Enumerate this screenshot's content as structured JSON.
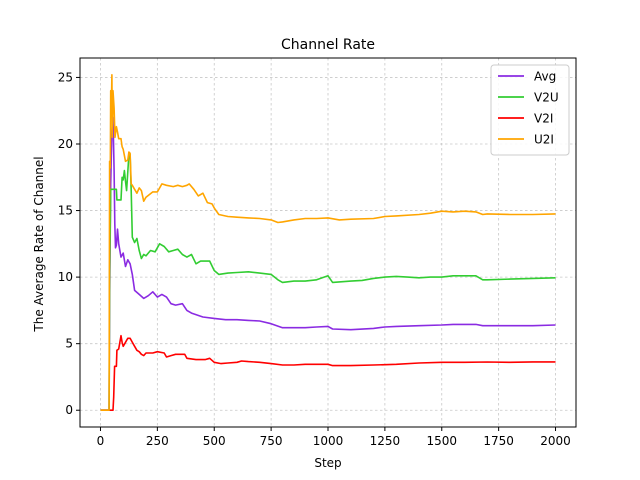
{
  "chart_data": {
    "type": "line",
    "title": "Channel Rate",
    "xlabel": "Step",
    "ylabel": "The Average Rate of Channel",
    "xlim": [
      -90,
      2090
    ],
    "ylim": [
      -1.26,
      26.46
    ],
    "xticks": [
      0,
      250,
      500,
      750,
      1000,
      1250,
      1500,
      1750,
      2000
    ],
    "yticks": [
      0,
      5,
      10,
      15,
      20,
      25
    ],
    "grid": true,
    "legend_position": "top-right",
    "series": [
      {
        "name": "Avg",
        "color": "#8a2be2",
        "points": [
          [
            0,
            0
          ],
          [
            38,
            0
          ],
          [
            40,
            8
          ],
          [
            45,
            17
          ],
          [
            50,
            21
          ],
          [
            55,
            22
          ],
          [
            60,
            18
          ],
          [
            63,
            14
          ],
          [
            66,
            12.2
          ],
          [
            70,
            12.4
          ],
          [
            75,
            13.6
          ],
          [
            80,
            12.5
          ],
          [
            90,
            11.5
          ],
          [
            100,
            11.8
          ],
          [
            110,
            10.8
          ],
          [
            120,
            11.3
          ],
          [
            130,
            11
          ],
          [
            140,
            10.2
          ],
          [
            150,
            9
          ],
          [
            170,
            8.7
          ],
          [
            190,
            8.4
          ],
          [
            210,
            8.6
          ],
          [
            230,
            8.9
          ],
          [
            250,
            8.5
          ],
          [
            270,
            8.7
          ],
          [
            290,
            8.5
          ],
          [
            310,
            8
          ],
          [
            330,
            7.9
          ],
          [
            360,
            8
          ],
          [
            380,
            7.5
          ],
          [
            400,
            7.3
          ],
          [
            450,
            7
          ],
          [
            500,
            6.9
          ],
          [
            550,
            6.8
          ],
          [
            600,
            6.8
          ],
          [
            650,
            6.75
          ],
          [
            700,
            6.7
          ],
          [
            750,
            6.5
          ],
          [
            800,
            6.2
          ],
          [
            850,
            6.2
          ],
          [
            900,
            6.2
          ],
          [
            950,
            6.25
          ],
          [
            1000,
            6.3
          ],
          [
            1020,
            6.1
          ],
          [
            1100,
            6.05
          ],
          [
            1200,
            6.15
          ],
          [
            1250,
            6.25
          ],
          [
            1300,
            6.3
          ],
          [
            1400,
            6.35
          ],
          [
            1500,
            6.4
          ],
          [
            1550,
            6.45
          ],
          [
            1600,
            6.45
          ],
          [
            1650,
            6.45
          ],
          [
            1680,
            6.35
          ],
          [
            1750,
            6.35
          ],
          [
            1800,
            6.35
          ],
          [
            1900,
            6.35
          ],
          [
            2000,
            6.4
          ]
        ]
      },
      {
        "name": "V2U",
        "color": "#32cd32",
        "points": [
          [
            0,
            0
          ],
          [
            38,
            0
          ],
          [
            40,
            10
          ],
          [
            45,
            16.6
          ],
          [
            70,
            16.6
          ],
          [
            72,
            15.8
          ],
          [
            90,
            15.8
          ],
          [
            95,
            17.5
          ],
          [
            100,
            17.3
          ],
          [
            105,
            18
          ],
          [
            110,
            17.2
          ],
          [
            115,
            16.5
          ],
          [
            125,
            19.2
          ],
          [
            130,
            19.2
          ],
          [
            135,
            16.5
          ],
          [
            140,
            13
          ],
          [
            150,
            12.6
          ],
          [
            160,
            12.9
          ],
          [
            170,
            12
          ],
          [
            180,
            11.4
          ],
          [
            190,
            11.7
          ],
          [
            200,
            11.6
          ],
          [
            220,
            12
          ],
          [
            240,
            11.9
          ],
          [
            260,
            12.5
          ],
          [
            280,
            12.3
          ],
          [
            300,
            11.9
          ],
          [
            320,
            12
          ],
          [
            340,
            12.1
          ],
          [
            360,
            11.7
          ],
          [
            380,
            11.5
          ],
          [
            400,
            11.7
          ],
          [
            420,
            11
          ],
          [
            440,
            11.2
          ],
          [
            460,
            11.2
          ],
          [
            480,
            11.2
          ],
          [
            500,
            10.5
          ],
          [
            520,
            10.2
          ],
          [
            560,
            10.3
          ],
          [
            600,
            10.35
          ],
          [
            650,
            10.4
          ],
          [
            700,
            10.3
          ],
          [
            750,
            10.2
          ],
          [
            780,
            9.8
          ],
          [
            800,
            9.6
          ],
          [
            850,
            9.7
          ],
          [
            900,
            9.7
          ],
          [
            950,
            9.8
          ],
          [
            1000,
            10.1
          ],
          [
            1020,
            9.6
          ],
          [
            1100,
            9.7
          ],
          [
            1150,
            9.75
          ],
          [
            1200,
            9.9
          ],
          [
            1250,
            10
          ],
          [
            1300,
            10.05
          ],
          [
            1350,
            10
          ],
          [
            1400,
            9.95
          ],
          [
            1450,
            10
          ],
          [
            1500,
            10
          ],
          [
            1550,
            10.1
          ],
          [
            1600,
            10.1
          ],
          [
            1650,
            10.1
          ],
          [
            1680,
            9.8
          ],
          [
            1700,
            9.8
          ],
          [
            1800,
            9.85
          ],
          [
            1900,
            9.9
          ],
          [
            2000,
            9.95
          ]
        ]
      },
      {
        "name": "V2I",
        "color": "#ff0000",
        "points": [
          [
            0,
            0
          ],
          [
            55,
            0
          ],
          [
            58,
            1
          ],
          [
            62,
            3.3
          ],
          [
            70,
            3.3
          ],
          [
            72,
            4.5
          ],
          [
            80,
            4.6
          ],
          [
            90,
            5.6
          ],
          [
            95,
            5.1
          ],
          [
            100,
            4.8
          ],
          [
            110,
            5.1
          ],
          [
            120,
            5.4
          ],
          [
            130,
            5.4
          ],
          [
            140,
            5.1
          ],
          [
            150,
            4.8
          ],
          [
            160,
            4.5
          ],
          [
            170,
            4.4
          ],
          [
            180,
            4.2
          ],
          [
            190,
            4.1
          ],
          [
            200,
            4.3
          ],
          [
            230,
            4.3
          ],
          [
            250,
            4.4
          ],
          [
            280,
            4.3
          ],
          [
            290,
            4
          ],
          [
            310,
            4.1
          ],
          [
            330,
            4.2
          ],
          [
            350,
            4.2
          ],
          [
            370,
            4.2
          ],
          [
            380,
            3.9
          ],
          [
            420,
            3.8
          ],
          [
            460,
            3.8
          ],
          [
            480,
            3.9
          ],
          [
            500,
            3.6
          ],
          [
            530,
            3.5
          ],
          [
            560,
            3.55
          ],
          [
            600,
            3.6
          ],
          [
            620,
            3.7
          ],
          [
            650,
            3.65
          ],
          [
            700,
            3.6
          ],
          [
            750,
            3.5
          ],
          [
            800,
            3.4
          ],
          [
            850,
            3.4
          ],
          [
            900,
            3.45
          ],
          [
            1000,
            3.45
          ],
          [
            1020,
            3.35
          ],
          [
            1100,
            3.35
          ],
          [
            1200,
            3.4
          ],
          [
            1300,
            3.45
          ],
          [
            1400,
            3.55
          ],
          [
            1500,
            3.6
          ],
          [
            1600,
            3.6
          ],
          [
            1700,
            3.62
          ],
          [
            1800,
            3.6
          ],
          [
            1900,
            3.63
          ],
          [
            2000,
            3.63
          ]
        ]
      },
      {
        "name": "U2I",
        "color": "#ffa500",
        "points": [
          [
            0,
            0
          ],
          [
            38,
            0
          ],
          [
            40,
            18.7
          ],
          [
            43,
            18.2
          ],
          [
            45,
            24
          ],
          [
            48,
            23
          ],
          [
            50,
            25.2
          ],
          [
            52,
            20.5
          ],
          [
            55,
            24
          ],
          [
            60,
            22.7
          ],
          [
            64,
            20.5
          ],
          [
            70,
            21.3
          ],
          [
            75,
            20.9
          ],
          [
            80,
            20.4
          ],
          [
            90,
            20.4
          ],
          [
            95,
            19.8
          ],
          [
            100,
            19.6
          ],
          [
            110,
            18.7
          ],
          [
            120,
            18.8
          ],
          [
            125,
            19.4
          ],
          [
            130,
            19.3
          ],
          [
            135,
            17
          ],
          [
            140,
            16.9
          ],
          [
            150,
            16.6
          ],
          [
            160,
            16.3
          ],
          [
            170,
            16.7
          ],
          [
            180,
            16.5
          ],
          [
            190,
            15.7
          ],
          [
            200,
            16
          ],
          [
            230,
            16.4
          ],
          [
            250,
            16.4
          ],
          [
            270,
            17
          ],
          [
            290,
            16.9
          ],
          [
            320,
            16.8
          ],
          [
            340,
            16.9
          ],
          [
            360,
            16.8
          ],
          [
            380,
            16.9
          ],
          [
            390,
            17
          ],
          [
            410,
            16.6
          ],
          [
            430,
            16.1
          ],
          [
            450,
            16.3
          ],
          [
            470,
            15.6
          ],
          [
            490,
            15.5
          ],
          [
            500,
            15.2
          ],
          [
            520,
            14.7
          ],
          [
            560,
            14.55
          ],
          [
            600,
            14.5
          ],
          [
            650,
            14.45
          ],
          [
            700,
            14.4
          ],
          [
            750,
            14.3
          ],
          [
            780,
            14.1
          ],
          [
            800,
            14.15
          ],
          [
            850,
            14.3
          ],
          [
            900,
            14.4
          ],
          [
            950,
            14.4
          ],
          [
            1000,
            14.45
          ],
          [
            1050,
            14.3
          ],
          [
            1100,
            14.35
          ],
          [
            1200,
            14.4
          ],
          [
            1250,
            14.55
          ],
          [
            1300,
            14.6
          ],
          [
            1400,
            14.7
          ],
          [
            1450,
            14.8
          ],
          [
            1500,
            14.95
          ],
          [
            1550,
            14.9
          ],
          [
            1600,
            14.95
          ],
          [
            1650,
            14.9
          ],
          [
            1680,
            14.7
          ],
          [
            1700,
            14.75
          ],
          [
            1800,
            14.7
          ],
          [
            1900,
            14.7
          ],
          [
            2000,
            14.75
          ]
        ]
      }
    ]
  }
}
